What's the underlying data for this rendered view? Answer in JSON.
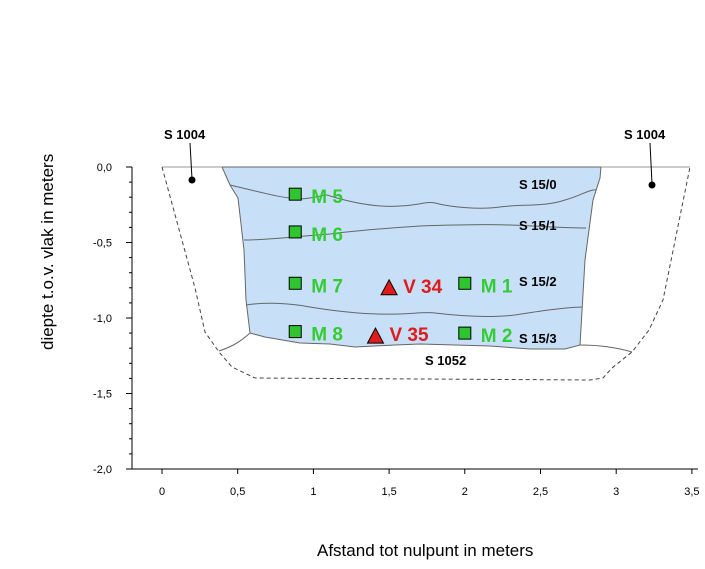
{
  "colors": {
    "layer_fill": "#c7dff7",
    "outline": "#666666",
    "sample_square": "#2ec52e",
    "sample_text": "#33cc33",
    "v_triangle": "#e01b1b",
    "v_text": "#e01b1b"
  },
  "axes": {
    "y_title": "diepte t.o.v. vlak in meters",
    "x_title": "Afstand tot nulpunt in meters",
    "x_ticks": [
      "0",
      "0,5",
      "1",
      "1,5",
      "2",
      "2,5",
      "3",
      "3,5"
    ],
    "y_ticks": [
      "0,0",
      "-0,5",
      "-1,0",
      "-1,5",
      "-2,0"
    ],
    "x_range": [
      -0.25,
      3.55
    ],
    "y_range": [
      -2.0,
      0.0
    ]
  },
  "features": {
    "left_feature": "S 1004",
    "right_feature": "S 1004",
    "bottom_feature": "S 1052"
  },
  "layers": [
    "S 15/0",
    "S 15/1",
    "S 15/2",
    "S 15/3"
  ],
  "samples": [
    {
      "label": "M 5",
      "type": "M",
      "x": 0.88,
      "y": -0.18
    },
    {
      "label": "M 6",
      "type": "M",
      "x": 0.88,
      "y": -0.43
    },
    {
      "label": "M 7",
      "type": "M",
      "x": 0.88,
      "y": -0.77
    },
    {
      "label": "M 8",
      "type": "M",
      "x": 0.88,
      "y": -1.09
    },
    {
      "label": "M 1",
      "type": "M",
      "x": 2.0,
      "y": -0.77
    },
    {
      "label": "M 2",
      "type": "M",
      "x": 2.0,
      "y": -1.1
    },
    {
      "label": "V 34",
      "type": "V",
      "x": 1.5,
      "y": -0.8
    },
    {
      "label": "V 35",
      "type": "V",
      "x": 1.41,
      "y": -1.12
    }
  ]
}
